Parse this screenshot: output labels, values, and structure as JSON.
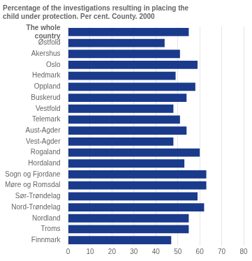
{
  "chart_data": {
    "type": "bar",
    "orientation": "horizontal",
    "title": "Percentage of the investigations resulting in placing the\nchild under protection. Per cent. County. 2000",
    "categories": [
      "The whole\ncountry",
      "Østfold",
      "Akershus",
      "Oslo",
      "Hedmark",
      "Oppland",
      "Buskerud",
      "Vestfold",
      "Telemark",
      "Aust-Agder",
      "Vest-Agder",
      "Rogaland",
      "Hordaland",
      "Sogn og Fjordane",
      "Møre og Romsdal",
      "Sør-Trøndelag",
      "Nord-Trøndelag",
      "Nordland",
      "Troms",
      "Finnmark"
    ],
    "values": [
      55,
      44,
      51,
      59,
      49,
      58,
      54,
      48,
      51,
      54,
      48,
      60,
      53,
      63,
      63,
      59,
      62,
      55,
      55,
      47
    ],
    "color": "#1a3a8c",
    "xlim": [
      0,
      80
    ],
    "xticks": [
      0,
      10,
      20,
      30,
      40,
      50,
      60,
      70,
      80
    ],
    "grid": true
  }
}
